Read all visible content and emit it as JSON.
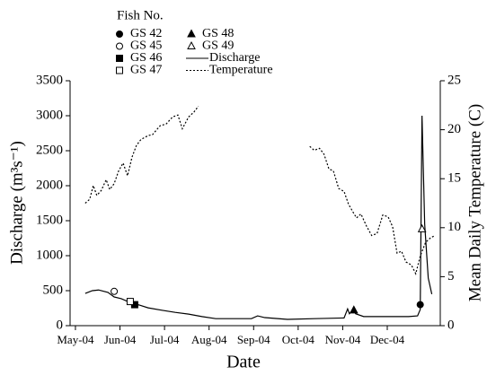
{
  "chart_data": {
    "type": "line",
    "xlabel": "Date",
    "ylabel": "Discharge (m³s⁻¹)",
    "y2label": "Mean Daily Temperature (C)",
    "legend_title": "Fish No.",
    "xlim": [
      -0.12,
      8.19
    ],
    "xticks": [
      {
        "value": 0,
        "label": "May-04"
      },
      {
        "value": 1,
        "label": "Jun-04"
      },
      {
        "value": 2,
        "label": "Jul-04"
      },
      {
        "value": 3,
        "label": "Aug-04"
      },
      {
        "value": 4,
        "label": "Sep-04"
      },
      {
        "value": 5,
        "label": "Oct-04"
      },
      {
        "value": 6,
        "label": "Nov-04"
      },
      {
        "value": 7,
        "label": "Dec-04"
      }
    ],
    "ylim": [
      0,
      3500
    ],
    "yticks": [
      0,
      500,
      1000,
      1500,
      2000,
      2500,
      3000,
      3500
    ],
    "y2lim": [
      0,
      25
    ],
    "y2ticks": [
      0,
      5,
      10,
      15,
      20,
      25
    ],
    "series": [
      {
        "name": "Discharge",
        "color": "#000000",
        "dash": "solid",
        "x": [
          0.22,
          0.38,
          0.52,
          0.73,
          0.87,
          1.03,
          1.23,
          1.43,
          1.63,
          1.94,
          2.24,
          2.54,
          2.84,
          3.15,
          3.55,
          3.95,
          4.09,
          4.25,
          4.76,
          5.36,
          6.03,
          6.11,
          6.15,
          6.23,
          6.29,
          6.47,
          6.98,
          7.48,
          7.68,
          7.74,
          7.78,
          7.84,
          7.92,
          8.0
        ],
        "values": [
          460,
          500,
          510,
          475,
          410,
          385,
          330,
          295,
          255,
          220,
          190,
          165,
          130,
          100,
          100,
          100,
          140,
          115,
          90,
          100,
          110,
          240,
          170,
          230,
          170,
          130,
          130,
          130,
          140,
          230,
          3000,
          1450,
          680,
          450
        ]
      },
      {
        "name": "Temperature",
        "color": "#000000",
        "dash": "dotted",
        "axis": "y2",
        "x": [
          0.22,
          0.32,
          0.4,
          0.48,
          0.58,
          0.69,
          0.77,
          0.87,
          0.97,
          1.07,
          1.17,
          1.27,
          1.37,
          1.47,
          1.63,
          1.73,
          1.9,
          2.04,
          2.18,
          2.3,
          2.4,
          2.54,
          2.66,
          2.76,
          null,
          5.26,
          5.36,
          5.48,
          5.58,
          5.69,
          5.79,
          5.91,
          6.03,
          6.13,
          6.23,
          6.31,
          6.41,
          6.53,
          6.65,
          6.77,
          6.9,
          7.02,
          7.12,
          7.22,
          7.32,
          7.42,
          7.54,
          7.64,
          7.74,
          7.86,
          7.98,
          8.08
        ],
        "values": [
          12.5,
          12.9,
          14.3,
          13.3,
          13.8,
          14.9,
          13.9,
          14.5,
          15.8,
          16.6,
          15.3,
          17.2,
          18.4,
          19.0,
          19.4,
          19.5,
          20.4,
          20.6,
          21.3,
          21.5,
          20.1,
          21.3,
          21.8,
          22.4,
          null,
          18.3,
          17.9,
          18.1,
          17.5,
          16.0,
          15.8,
          14.0,
          13.7,
          12.4,
          11.6,
          11.0,
          11.4,
          10.2,
          9.2,
          9.4,
          11.3,
          11.1,
          10.1,
          7.4,
          7.6,
          6.5,
          6.2,
          5.3,
          7.1,
          8.5,
          9.0,
          9.2
        ]
      }
    ],
    "fish": [
      {
        "name": "GS 42",
        "marker": "circle",
        "filled": true,
        "x": 7.74,
        "value": 300
      },
      {
        "name": "GS 45",
        "marker": "circle",
        "filled": false,
        "x": 0.87,
        "value": 490
      },
      {
        "name": "GS 46",
        "marker": "square",
        "filled": true,
        "x": 1.33,
        "value": 300
      },
      {
        "name": "GS 47",
        "marker": "square",
        "filled": false,
        "x": 1.23,
        "value": 345
      },
      {
        "name": "GS 48",
        "marker": "triangle",
        "filled": true,
        "x": 6.25,
        "value": 220
      },
      {
        "name": "GS 49",
        "marker": "triangle",
        "filled": false,
        "x": 7.78,
        "value": 1380
      }
    ]
  }
}
